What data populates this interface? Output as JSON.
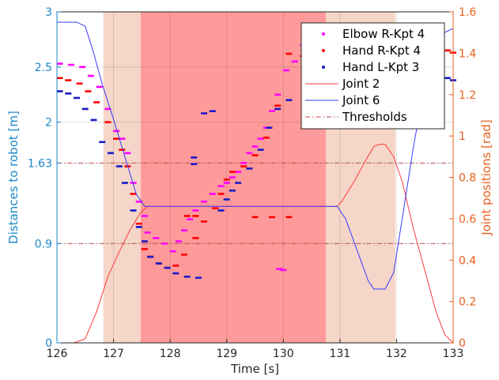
{
  "chart_data": {
    "type": "line",
    "xlabel": "Time [s]",
    "ylabel_left": "Distances to robot [m]",
    "ylabel_right": "Joint positions [rad]",
    "xlim": [
      126,
      133
    ],
    "ylim_left": [
      0,
      3
    ],
    "ylim_right": [
      0,
      1.6
    ],
    "x_ticks": [
      "126",
      "127",
      "128",
      "129",
      "130",
      "131",
      "132",
      "133"
    ],
    "y_ticks_left": [
      {
        "value": 0,
        "label": "0"
      },
      {
        "value": 0.9,
        "label": "0.9"
      },
      {
        "value": 1.63,
        "label": "1.63"
      },
      {
        "value": 2,
        "label": "2"
      },
      {
        "value": 2.5,
        "label": "2.5"
      },
      {
        "value": 3,
        "label": "3"
      }
    ],
    "y_ticks_right": [
      "0",
      "0.2",
      "0.4",
      "0.6",
      "0.8",
      "1",
      "1.2",
      "1.4",
      "1.6"
    ],
    "grid": true,
    "legend_position": "top-right",
    "colors": {
      "left_axis": "#1b87c9",
      "right_axis": "#e8601c",
      "elbow": "#ff00ff",
      "hand_r": "#ff0000",
      "hand_l": "#1a1ac8",
      "joint2": "#ff3b3b",
      "joint6": "#3a3aff",
      "threshold": "#c0504d",
      "zone_light": "#f5d6c8",
      "zone_dark": "#ff9a9a"
    },
    "thresholds_left": [
      1.63,
      0.9
    ],
    "zones": [
      {
        "start": 126.82,
        "end": 127.48,
        "level": "warning"
      },
      {
        "start": 127.48,
        "end": 130.75,
        "level": "danger"
      },
      {
        "start": 130.75,
        "end": 131.98,
        "level": "warning"
      }
    ],
    "legend": [
      {
        "label": "Elbow R-Kpt 4",
        "kind": "dot",
        "color_key": "elbow"
      },
      {
        "label": "Hand R-Kpt 4",
        "kind": "dot",
        "color_key": "hand_r"
      },
      {
        "label": "Hand L-Kpt 3",
        "kind": "dot",
        "color_key": "hand_l"
      },
      {
        "label": "Joint 2",
        "kind": "line",
        "color_key": "joint2"
      },
      {
        "label": "Joint 6",
        "kind": "line",
        "color_key": "joint6"
      },
      {
        "label": "Thresholds",
        "kind": "dashdot",
        "color_key": "threshold"
      }
    ],
    "series": [
      {
        "name": "Elbow R-Kpt 4",
        "axis": "left",
        "style": "scatter",
        "color_key": "elbow",
        "points": [
          [
            126.05,
            2.53
          ],
          [
            126.25,
            2.52
          ],
          [
            126.45,
            2.5
          ],
          [
            126.6,
            2.42
          ],
          [
            126.75,
            2.32
          ],
          [
            126.9,
            2.12
          ],
          [
            127.05,
            1.92
          ],
          [
            127.15,
            1.85
          ],
          [
            127.25,
            1.72
          ],
          [
            127.35,
            1.45
          ],
          [
            127.45,
            1.28
          ],
          [
            127.55,
            1.15
          ],
          [
            127.6,
            1.0
          ],
          [
            127.75,
            0.95
          ],
          [
            127.9,
            0.9
          ],
          [
            128.05,
            0.83
          ],
          [
            128.15,
            0.92
          ],
          [
            128.25,
            1.02
          ],
          [
            128.35,
            1.12
          ],
          [
            128.45,
            1.2
          ],
          [
            128.6,
            1.28
          ],
          [
            128.75,
            1.35
          ],
          [
            128.9,
            1.42
          ],
          [
            129.0,
            1.45
          ],
          [
            129.1,
            1.5
          ],
          [
            129.2,
            1.55
          ],
          [
            129.3,
            1.63
          ],
          [
            129.4,
            1.72
          ],
          [
            129.5,
            1.78
          ],
          [
            129.6,
            1.85
          ],
          [
            129.7,
            1.95
          ],
          [
            129.8,
            2.1
          ],
          [
            129.9,
            2.25
          ],
          [
            130.05,
            2.47
          ],
          [
            130.2,
            2.55
          ],
          [
            130.35,
            2.7
          ],
          [
            130.5,
            2.72
          ],
          [
            130.7,
            2.74
          ],
          [
            130.9,
            2.75
          ],
          [
            129.93,
            0.67
          ],
          [
            130.0,
            0.66
          ]
        ]
      },
      {
        "name": "Hand R-Kpt 4",
        "axis": "left",
        "style": "scatter",
        "color_key": "hand_r",
        "points": [
          [
            126.05,
            2.4
          ],
          [
            126.2,
            2.38
          ],
          [
            126.4,
            2.35
          ],
          [
            126.55,
            2.28
          ],
          [
            126.7,
            2.18
          ],
          [
            126.9,
            2.0
          ],
          [
            127.05,
            1.85
          ],
          [
            127.15,
            1.75
          ],
          [
            127.25,
            1.6
          ],
          [
            127.35,
            1.35
          ],
          [
            127.45,
            1.08
          ],
          [
            127.55,
            0.85
          ],
          [
            127.65,
            0.78
          ],
          [
            127.8,
            0.72
          ],
          [
            127.95,
            0.68
          ],
          [
            128.1,
            0.7
          ],
          [
            128.25,
            0.8
          ],
          [
            128.45,
            0.95
          ],
          [
            128.6,
            1.1
          ],
          [
            128.8,
            1.22
          ],
          [
            128.9,
            1.35
          ],
          [
            129.0,
            1.48
          ],
          [
            129.1,
            1.55
          ],
          [
            129.3,
            1.6
          ],
          [
            129.5,
            1.7
          ],
          [
            129.7,
            1.86
          ],
          [
            129.9,
            2.15
          ],
          [
            130.1,
            2.62
          ],
          [
            130.35,
            2.6
          ],
          [
            130.6,
            2.63
          ],
          [
            130.8,
            2.67
          ],
          [
            131.05,
            2.66
          ],
          [
            132.9,
            2.65
          ],
          [
            133.0,
            2.63
          ],
          [
            129.5,
            1.14
          ],
          [
            129.8,
            1.14
          ],
          [
            130.1,
            1.14
          ],
          [
            128.3,
            1.15
          ],
          [
            128.45,
            1.15
          ]
        ]
      },
      {
        "name": "Hand L-Kpt 3",
        "axis": "left",
        "style": "scatter",
        "color_key": "hand_l",
        "points": [
          [
            126.05,
            2.28
          ],
          [
            126.2,
            2.26
          ],
          [
            126.35,
            2.22
          ],
          [
            126.5,
            2.12
          ],
          [
            126.65,
            2.02
          ],
          [
            126.8,
            1.82
          ],
          [
            126.95,
            1.72
          ],
          [
            127.1,
            1.6
          ],
          [
            127.2,
            1.45
          ],
          [
            127.35,
            1.2
          ],
          [
            127.45,
            1.05
          ],
          [
            127.55,
            0.92
          ],
          [
            127.65,
            0.78
          ],
          [
            127.8,
            0.72
          ],
          [
            127.95,
            0.68
          ],
          [
            128.1,
            0.63
          ],
          [
            128.3,
            0.6
          ],
          [
            128.5,
            0.59
          ],
          [
            128.6,
            2.08
          ],
          [
            128.75,
            2.1
          ],
          [
            128.9,
            1.2
          ],
          [
            129.0,
            1.3
          ],
          [
            129.1,
            1.38
          ],
          [
            129.2,
            1.45
          ],
          [
            129.4,
            1.58
          ],
          [
            129.6,
            1.75
          ],
          [
            129.75,
            1.95
          ],
          [
            129.9,
            2.12
          ],
          [
            130.1,
            2.2
          ],
          [
            130.4,
            2.22
          ],
          [
            130.6,
            2.2
          ],
          [
            130.8,
            2.27
          ],
          [
            131.0,
            2.3
          ],
          [
            132.9,
            2.4
          ],
          [
            133.0,
            2.38
          ],
          [
            128.42,
            1.68
          ],
          [
            128.42,
            1.62
          ]
        ]
      },
      {
        "name": "Joint 2",
        "axis": "right",
        "style": "line",
        "color_key": "joint2",
        "points": [
          [
            126,
            0
          ],
          [
            126.3,
            0
          ],
          [
            126.5,
            0.02
          ],
          [
            126.7,
            0.15
          ],
          [
            126.9,
            0.32
          ],
          [
            127.1,
            0.44
          ],
          [
            127.3,
            0.55
          ],
          [
            127.48,
            0.63
          ],
          [
            127.6,
            0.66
          ],
          [
            130.95,
            0.66
          ],
          [
            131.05,
            0.69
          ],
          [
            131.25,
            0.78
          ],
          [
            131.45,
            0.88
          ],
          [
            131.6,
            0.95
          ],
          [
            131.7,
            0.96
          ],
          [
            131.8,
            0.96
          ],
          [
            131.95,
            0.9
          ],
          [
            132.1,
            0.78
          ],
          [
            132.3,
            0.55
          ],
          [
            132.5,
            0.35
          ],
          [
            132.7,
            0.15
          ],
          [
            132.85,
            0.04
          ],
          [
            133,
            0
          ]
        ]
      },
      {
        "name": "Joint 6",
        "axis": "right",
        "style": "line",
        "color_key": "joint6",
        "points": [
          [
            126,
            1.55
          ],
          [
            126.35,
            1.55
          ],
          [
            126.5,
            1.53
          ],
          [
            126.65,
            1.4
          ],
          [
            126.8,
            1.25
          ],
          [
            127.0,
            1.08
          ],
          [
            127.2,
            0.9
          ],
          [
            127.4,
            0.72
          ],
          [
            127.55,
            0.66
          ],
          [
            130.95,
            0.66
          ],
          [
            131.1,
            0.6
          ],
          [
            131.3,
            0.45
          ],
          [
            131.5,
            0.3
          ],
          [
            131.6,
            0.26
          ],
          [
            131.8,
            0.26
          ],
          [
            131.95,
            0.34
          ],
          [
            132.1,
            0.6
          ],
          [
            132.3,
            0.95
          ],
          [
            132.5,
            1.25
          ],
          [
            132.7,
            1.45
          ],
          [
            132.85,
            1.5
          ],
          [
            133,
            1.52
          ]
        ]
      }
    ]
  }
}
